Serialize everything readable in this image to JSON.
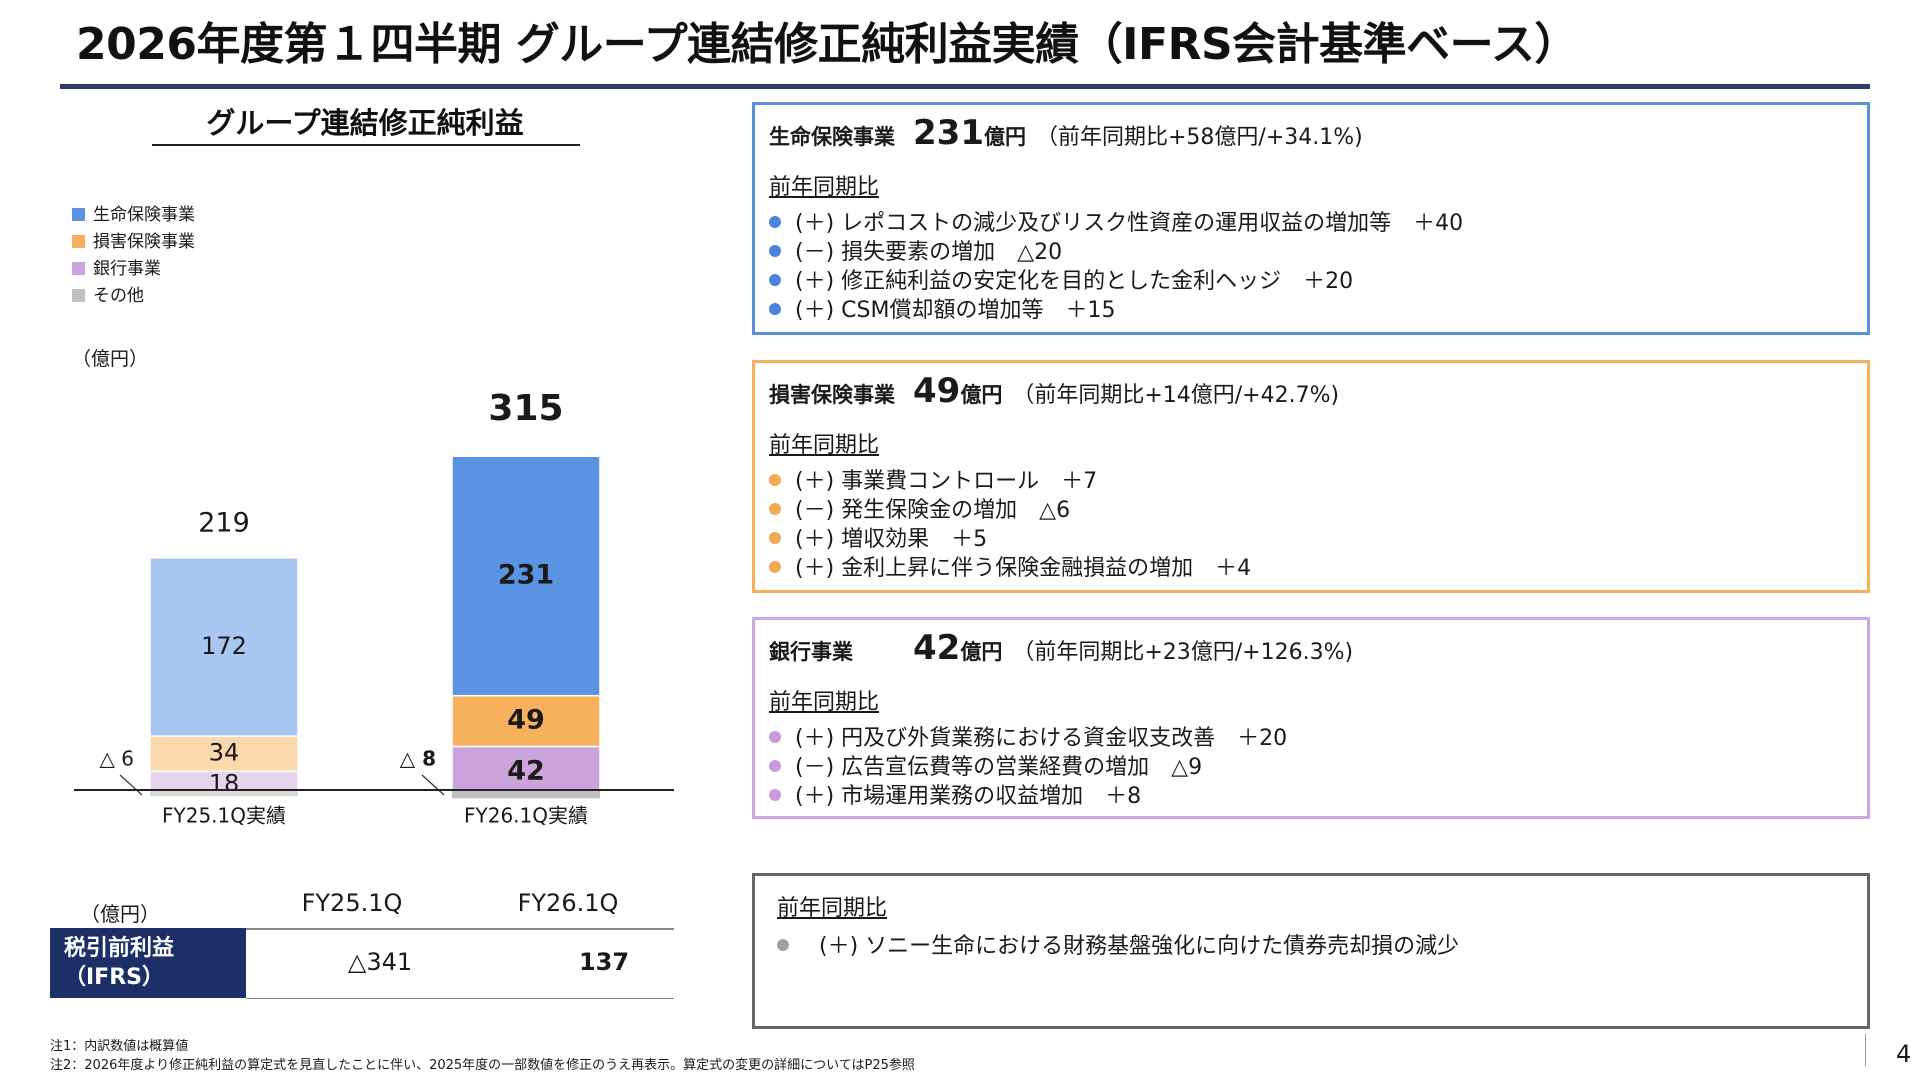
{
  "title": "2026年度第１四半期 グループ連結修正純利益実績（IFRS会計基準ベース）",
  "chart_heading": "グループ連結修正純利益",
  "legend": [
    {
      "label": "生命保険事業",
      "color": "#5b93e3"
    },
    {
      "label": "損害保険事業",
      "color": "#f7b05b"
    },
    {
      "label": "銀行事業",
      "color": "#cca4dc"
    },
    {
      "label": "その他",
      "color": "#c0c0c0"
    }
  ],
  "unit_label": "（億円）",
  "chart_data": {
    "type": "bar",
    "stacked": true,
    "categories": [
      "FY25.1Q実績",
      "FY26.1Q実績"
    ],
    "series": [
      {
        "name": "生命保険事業",
        "values": [
          172,
          231
        ],
        "colors": [
          "#a8c6f1",
          "#5b93e3"
        ]
      },
      {
        "name": "損害保険事業",
        "values": [
          34,
          49
        ],
        "colors": [
          "#fbd9ad",
          "#f7b05b"
        ]
      },
      {
        "name": "銀行事業",
        "values": [
          18,
          42
        ],
        "colors": [
          "#e6d3ee",
          "#cca4dc"
        ]
      },
      {
        "name": "その他",
        "values": [
          -6,
          -8
        ],
        "colors": [
          "#d9d9d9",
          "#c0c0c0"
        ]
      }
    ],
    "totals": [
      219,
      315
    ],
    "other_labels": [
      "△ 6",
      "△ 8"
    ],
    "ylim": [
      -8,
      315
    ]
  },
  "panels": {
    "life": {
      "name": "生命保険事業",
      "value": "231",
      "unit": "億円",
      "yoy": "（前年同期比+58億円/+34.1%)",
      "heading": "前年同期比",
      "color": "#5b8fdb",
      "dot": "#4a85dc",
      "items": [
        "(＋) レポコストの減少及びリスク性資産の運用収益の増加等　＋40",
        "(－) 損失要素の増加　△20",
        "(＋) 修正純利益の安定化を目的とした金利ヘッジ　＋20",
        "(＋) CSM償却額の増加等　＋15"
      ]
    },
    "nonlife": {
      "name": "損害保険事業",
      "value": "49",
      "unit": "億円",
      "yoy": "（前年同期比+14億円/+42.7%)",
      "heading": "前年同期比",
      "color": "#f5b05e",
      "dot": "#f3a951",
      "items": [
        "(＋) 事業費コントロール　＋7",
        "(－) 発生保険金の増加　△6",
        "(＋) 増収効果　＋5",
        "(＋) 金利上昇に伴う保険金融損益の増加　＋4"
      ]
    },
    "bank": {
      "name": "銀行事業",
      "value": "42",
      "unit": "億円",
      "yoy": "（前年同期比+23億円/+126.3%)",
      "heading": "前年同期比",
      "color": "#d0a7e0",
      "dot": "#c89cdb",
      "items": [
        "(＋) 円及び外貨業務における資金収支改善　＋20",
        "(－) 広告宣伝費等の営業経費の増加　△9",
        "(＋) 市場運用業務の収益増加　＋8"
      ]
    },
    "other": {
      "heading": "前年同期比",
      "color": "#666666",
      "dot": "#a0a0a0",
      "items": [
        "(＋) ソニー生命における財務基盤強化に向けた債券売却損の減少"
      ]
    }
  },
  "table": {
    "unit": "（億円）",
    "columns": [
      "FY25.1Q",
      "FY26.1Q"
    ],
    "row_label_1": "税引前利益",
    "row_label_2": "（IFRS）",
    "values": [
      "△341",
      "137"
    ]
  },
  "notes": {
    "note1": "注1：内訳数値は概算値",
    "note2": "注2：2026年度より修正純利益の算定式を見直したことに伴い、2025年度の一部数値を修正のうえ再表示。算定式の変更の詳細についてはP25参照"
  },
  "page_number": "4"
}
